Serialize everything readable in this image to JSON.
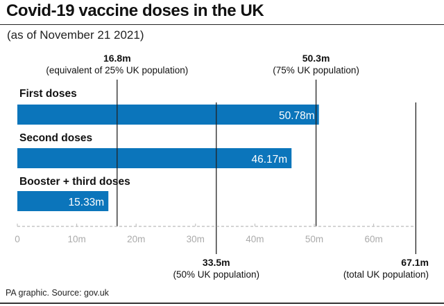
{
  "header": {
    "title": "Covid-19 vaccine doses in the UK",
    "subtitle": "(as of November 21 2021)"
  },
  "footer": {
    "source": "PA graphic. Source: gov.uk"
  },
  "colors": {
    "bar": "#0b75bb",
    "reference_line": "#222222",
    "axis": "#bbbbbb",
    "tick_label": "#aaaaaa"
  },
  "chart_data": {
    "type": "bar",
    "orientation": "horizontal",
    "title": "Covid-19 vaccine doses in the UK",
    "subtitle": "(as of November 21 2021)",
    "categories": [
      "First doses",
      "Second doses",
      "Booster + third doses"
    ],
    "values": [
      50.78,
      46.17,
      15.33
    ],
    "value_labels": [
      "50.78m",
      "46.17m",
      "15.33m"
    ],
    "unit": "m",
    "xlim": [
      0,
      70
    ],
    "xticks": [
      0,
      10,
      20,
      30,
      40,
      50,
      60
    ],
    "xtick_labels": [
      "0",
      "10m",
      "20m",
      "30m",
      "40m",
      "50m",
      "60m"
    ],
    "grid": false,
    "legend": "none",
    "reference_lines": [
      {
        "value": 16.8,
        "label": "16.8m",
        "note": "(equivalent of 25% UK population)",
        "position": "top"
      },
      {
        "value": 50.3,
        "label": "50.3m",
        "note": "(75% UK population)",
        "position": "top"
      },
      {
        "value": 33.5,
        "label": "33.5m",
        "note": "(50% UK population)",
        "position": "bottom"
      },
      {
        "value": 67.1,
        "label": "67.1m",
        "note": "(total UK population)",
        "position": "bottom"
      }
    ]
  }
}
